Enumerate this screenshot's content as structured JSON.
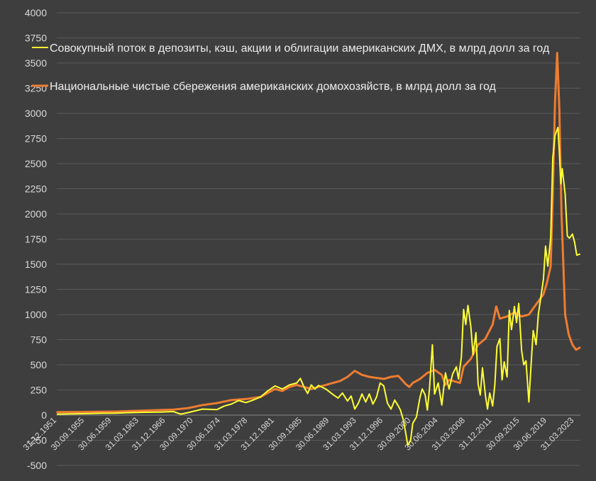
{
  "chart_data": {
    "type": "line",
    "title": "",
    "xlabel": "",
    "ylabel": "",
    "ylim": [
      -500,
      4000
    ],
    "yticks": [
      -500,
      -250,
      0,
      250,
      500,
      750,
      1000,
      1250,
      1500,
      1750,
      2000,
      2250,
      2500,
      2750,
      3000,
      3250,
      3500,
      3750,
      4000
    ],
    "xlim": [
      1951.92,
      2024.1
    ],
    "x_tick_labels": [
      {
        "t": 1951.92,
        "label": "31.12.1951"
      },
      {
        "t": 1955.75,
        "label": "30.09.1955"
      },
      {
        "t": 1959.5,
        "label": "30.06.1959"
      },
      {
        "t": 1963.25,
        "label": "31.03.1963"
      },
      {
        "t": 1966.92,
        "label": "31.12.1966"
      },
      {
        "t": 1970.75,
        "label": "30.09.1970"
      },
      {
        "t": 1974.5,
        "label": "30.06.1974"
      },
      {
        "t": 1978.25,
        "label": "31.03.1978"
      },
      {
        "t": 1981.92,
        "label": "31.12.1981"
      },
      {
        "t": 1985.75,
        "label": "30.09.1985"
      },
      {
        "t": 1989.5,
        "label": "30.06.1989"
      },
      {
        "t": 1993.25,
        "label": "31.03.1993"
      },
      {
        "t": 1996.92,
        "label": "31.12.1996"
      },
      {
        "t": 2000.75,
        "label": "30.09.2000"
      },
      {
        "t": 2004.5,
        "label": "30.06.2004"
      },
      {
        "t": 2008.25,
        "label": "31.03.2008"
      },
      {
        "t": 2011.92,
        "label": "31.12.2011"
      },
      {
        "t": 2015.75,
        "label": "30.09.2015"
      },
      {
        "t": 2019.5,
        "label": "30.06.2019"
      },
      {
        "t": 2023.25,
        "label": "31.03.2023"
      }
    ],
    "grid": true,
    "legend_position": "top-left, inside plot",
    "series": [
      {
        "name": "Совокупный поток в депозиты, кэш, акции и облигации американских ДМХ, в млрд долл за год",
        "color": "#ffff33",
        "points": [
          [
            1952,
            10
          ],
          [
            1954,
            12
          ],
          [
            1956,
            15
          ],
          [
            1958,
            18
          ],
          [
            1960,
            20
          ],
          [
            1962,
            25
          ],
          [
            1964,
            28
          ],
          [
            1966,
            30
          ],
          [
            1968,
            35
          ],
          [
            1969,
            10
          ],
          [
            1970,
            25
          ],
          [
            1972,
            60
          ],
          [
            1974,
            55
          ],
          [
            1975,
            90
          ],
          [
            1976,
            110
          ],
          [
            1977,
            145
          ],
          [
            1978,
            125
          ],
          [
            1979,
            150
          ],
          [
            1980,
            180
          ],
          [
            1981,
            240
          ],
          [
            1982,
            290
          ],
          [
            1983,
            260
          ],
          [
            1984,
            300
          ],
          [
            1985,
            320
          ],
          [
            1985.5,
            365
          ],
          [
            1986,
            280
          ],
          [
            1986.5,
            215
          ],
          [
            1987,
            300
          ],
          [
            1987.5,
            260
          ],
          [
            1988,
            295
          ],
          [
            1989,
            260
          ],
          [
            1990,
            205
          ],
          [
            1990.7,
            170
          ],
          [
            1991.3,
            220
          ],
          [
            1992,
            140
          ],
          [
            1992.5,
            190
          ],
          [
            1993,
            60
          ],
          [
            1993.5,
            120
          ],
          [
            1994,
            210
          ],
          [
            1994.5,
            130
          ],
          [
            1995,
            210
          ],
          [
            1995.5,
            110
          ],
          [
            1996,
            180
          ],
          [
            1996.5,
            320
          ],
          [
            1997,
            290
          ],
          [
            1997.5,
            120
          ],
          [
            1998,
            60
          ],
          [
            1998.5,
            150
          ],
          [
            1999,
            90
          ],
          [
            1999.3,
            50
          ],
          [
            1999.7,
            -50
          ],
          [
            2000,
            -170
          ],
          [
            2000.3,
            -300
          ],
          [
            2000.7,
            -250
          ],
          [
            2001,
            -80
          ],
          [
            2001.5,
            -20
          ],
          [
            2002,
            180
          ],
          [
            2002.3,
            260
          ],
          [
            2002.7,
            200
          ],
          [
            2003,
            50
          ],
          [
            2003.3,
            260
          ],
          [
            2003.7,
            700
          ],
          [
            2004,
            210
          ],
          [
            2004.5,
            320
          ],
          [
            2005,
            100
          ],
          [
            2005.5,
            420
          ],
          [
            2006,
            260
          ],
          [
            2006.5,
            410
          ],
          [
            2007,
            480
          ],
          [
            2007.3,
            360
          ],
          [
            2007.7,
            580
          ],
          [
            2008,
            1050
          ],
          [
            2008.3,
            900
          ],
          [
            2008.6,
            1090
          ],
          [
            2009,
            880
          ],
          [
            2009.3,
            600
          ],
          [
            2009.7,
            820
          ],
          [
            2010,
            310
          ],
          [
            2010.3,
            200
          ],
          [
            2010.6,
            470
          ],
          [
            2011,
            200
          ],
          [
            2011.3,
            60
          ],
          [
            2011.6,
            220
          ],
          [
            2012,
            90
          ],
          [
            2012.3,
            300
          ],
          [
            2012.6,
            680
          ],
          [
            2013,
            760
          ],
          [
            2013.3,
            350
          ],
          [
            2013.6,
            530
          ],
          [
            2014,
            380
          ],
          [
            2014.3,
            1040
          ],
          [
            2014.6,
            850
          ],
          [
            2015,
            1080
          ],
          [
            2015.3,
            920
          ],
          [
            2015.6,
            1110
          ],
          [
            2016,
            640
          ],
          [
            2016.3,
            500
          ],
          [
            2016.6,
            540
          ],
          [
            2017,
            130
          ],
          [
            2017.3,
            500
          ],
          [
            2017.6,
            840
          ],
          [
            2018,
            700
          ],
          [
            2018.3,
            1000
          ],
          [
            2018.6,
            1150
          ],
          [
            2019,
            1350
          ],
          [
            2019.3,
            1680
          ],
          [
            2019.6,
            1480
          ],
          [
            2020,
            1760
          ],
          [
            2020.3,
            2560
          ],
          [
            2020.6,
            2780
          ],
          [
            2021,
            2860
          ],
          [
            2021.2,
            2620
          ],
          [
            2021.4,
            2300
          ],
          [
            2021.6,
            2450
          ],
          [
            2022,
            2200
          ],
          [
            2022.3,
            1780
          ],
          [
            2022.6,
            1760
          ],
          [
            2023,
            1800
          ],
          [
            2023.3,
            1720
          ],
          [
            2023.6,
            1590
          ],
          [
            2024,
            1600
          ]
        ]
      },
      {
        "name": "Национальные чистые сбережения американских домохозяйств, в млрд долл за год",
        "color": "#ee7d31",
        "points": [
          [
            1952,
            30
          ],
          [
            1956,
            32
          ],
          [
            1960,
            35
          ],
          [
            1962,
            40
          ],
          [
            1966,
            50
          ],
          [
            1968,
            55
          ],
          [
            1970,
            70
          ],
          [
            1972,
            100
          ],
          [
            1974,
            120
          ],
          [
            1976,
            150
          ],
          [
            1978,
            160
          ],
          [
            1980,
            180
          ],
          [
            1981,
            220
          ],
          [
            1982,
            260
          ],
          [
            1983,
            240
          ],
          [
            1984,
            280
          ],
          [
            1985,
            300
          ],
          [
            1986,
            280
          ],
          [
            1987,
            260
          ],
          [
            1988,
            280
          ],
          [
            1989,
            300
          ],
          [
            1990,
            320
          ],
          [
            1991,
            340
          ],
          [
            1992,
            380
          ],
          [
            1993,
            440
          ],
          [
            1994,
            400
          ],
          [
            1995,
            380
          ],
          [
            1996,
            370
          ],
          [
            1997,
            360
          ],
          [
            1998,
            380
          ],
          [
            1999,
            390
          ],
          [
            2000,
            310
          ],
          [
            2000.5,
            280
          ],
          [
            2001,
            320
          ],
          [
            2002,
            360
          ],
          [
            2003,
            420
          ],
          [
            2004,
            450
          ],
          [
            2005,
            400
          ],
          [
            2005.5,
            300
          ],
          [
            2006,
            350
          ],
          [
            2007,
            330
          ],
          [
            2007.5,
            320
          ],
          [
            2008,
            480
          ],
          [
            2009,
            560
          ],
          [
            2010,
            700
          ],
          [
            2011,
            760
          ],
          [
            2012,
            900
          ],
          [
            2012.5,
            1080
          ],
          [
            2013,
            960
          ],
          [
            2014,
            980
          ],
          [
            2015,
            1020
          ],
          [
            2016,
            980
          ],
          [
            2017,
            1000
          ],
          [
            2018,
            1100
          ],
          [
            2019,
            1200
          ],
          [
            2019.5,
            1320
          ],
          [
            2020,
            1480
          ],
          [
            2020.3,
            2200
          ],
          [
            2020.6,
            3100
          ],
          [
            2020.9,
            3600
          ],
          [
            2021.2,
            3050
          ],
          [
            2021.5,
            2000
          ],
          [
            2022,
            1000
          ],
          [
            2022.5,
            800
          ],
          [
            2023,
            700
          ],
          [
            2023.5,
            650
          ],
          [
            2024,
            670
          ]
        ]
      }
    ]
  }
}
